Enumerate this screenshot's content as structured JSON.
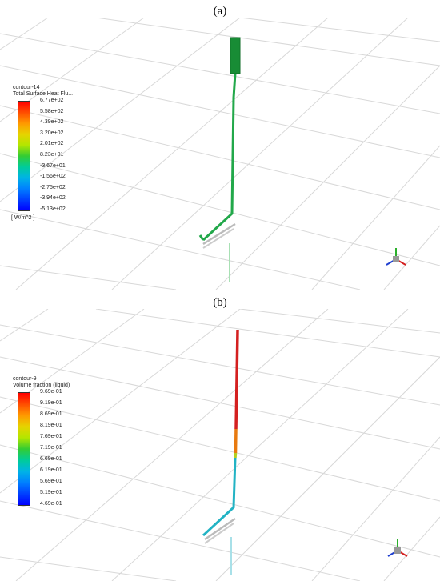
{
  "panels": [
    {
      "label": "(a)",
      "legend": {
        "name": "contour-14",
        "quantity": "Total Surface Heat Flu...",
        "ticks": [
          "6.77e+02",
          "5.58e+02",
          "4.39e+02",
          "3.20e+02",
          "2.01e+02",
          "8.23e+01",
          "-3.67e+01",
          "-1.56e+02",
          "-2.75e+02",
          "-3.94e+02",
          "-5.13e+02"
        ],
        "unit": "[ W/m^2 ]",
        "colors": [
          "#ff0000",
          "#ff4d00",
          "#ff9900",
          "#e6d300",
          "#b3e600",
          "#33cc33",
          "#00cc99",
          "#00b3e6",
          "#0080ff",
          "#0040ff",
          "#0000ff"
        ]
      },
      "pipe_color": "#22a84a"
    },
    {
      "label": "(b)",
      "legend": {
        "name": "contour-9",
        "quantity": "Volume fraction (liquid)",
        "ticks": [
          "9.69e-01",
          "9.19e-01",
          "8.69e-01",
          "8.19e-01",
          "7.69e-01",
          "7.19e-01",
          "6.69e-01",
          "6.19e-01",
          "5.69e-01",
          "5.19e-01",
          "4.69e-01"
        ],
        "colors": [
          "#ff0000",
          "#ff4d00",
          "#ff9900",
          "#e6d300",
          "#b3e600",
          "#33cc33",
          "#00cc99",
          "#00b3e6",
          "#0080ff",
          "#0040ff",
          "#0000ff"
        ]
      },
      "pipe_color_top": "#d42020",
      "pipe_color_mid": "#e87a10",
      "pipe_color_low": "#22b3c4"
    }
  ]
}
